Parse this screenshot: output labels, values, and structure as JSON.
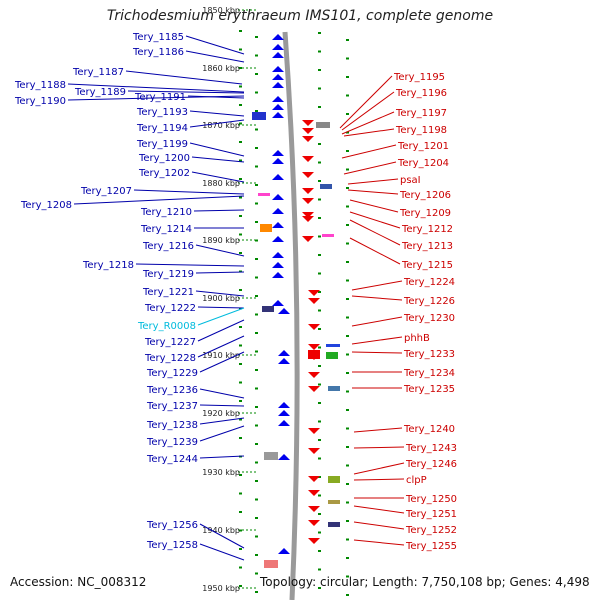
{
  "title": "Trichodesmium erythraeum IMS101, complete genome",
  "footer": {
    "accession": "Accession: NC_008312",
    "topology": "Topology: circular; Length: 7,750,108 bp; Genes: 4,498"
  },
  "colors": {
    "forward_gene": "#0000ee",
    "reverse_gene": "#ee0000",
    "rna_gene": "#00bbdd",
    "backbone": "#9a9a9a",
    "tick": "#008800",
    "label_left": "#0000aa",
    "label_right": "#cc0000"
  },
  "scale_labels": [
    "1850 kbp",
    "1860 kbp",
    "1870 kbp",
    "1880 kbp",
    "1890 kbp",
    "1900 kbp",
    "1910 kbp",
    "1920 kbp",
    "1930 kbp",
    "1940 kbp",
    "1950 kbp"
  ],
  "left_labels": [
    "Tery_1185",
    "Tery_1186",
    "Tery_1187",
    "Tery_1188",
    "Tery_1189",
    "Tery_1190",
    "Tery_1191",
    "Tery_1193",
    "Tery_1194",
    "Tery_1199",
    "Tery_1200",
    "Tery_1202",
    "Tery_1207",
    "Tery_1208",
    "Tery_1210",
    "Tery_1214",
    "Tery_1216",
    "Tery_1218",
    "Tery_1219",
    "Tery_1221",
    "Tery_1222",
    "Tery_R0008",
    "Tery_1227",
    "Tery_1228",
    "Tery_1229",
    "Tery_1236",
    "Tery_1237",
    "Tery_1238",
    "Tery_1239",
    "Tery_1244",
    "Tery_1256",
    "Tery_1258"
  ],
  "right_labels": [
    "Tery_1195",
    "Tery_1196",
    "Tery_1197",
    "Tery_1198",
    "Tery_1201",
    "Tery_1204",
    "psaI",
    "Tery_1206",
    "Tery_1209",
    "Tery_1212",
    "Tery_1213",
    "Tery_1215",
    "Tery_1224",
    "Tery_1226",
    "Tery_1230",
    "phhB",
    "Tery_1233",
    "Tery_1234",
    "Tery_1235",
    "Tery_1240",
    "Tery_1243",
    "Tery_1246",
    "clpP",
    "Tery_1250",
    "Tery_1251",
    "Tery_1252",
    "Tery_1255"
  ]
}
